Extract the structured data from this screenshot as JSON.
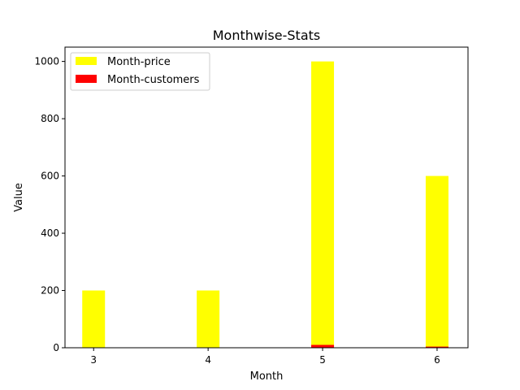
{
  "chart_data": {
    "type": "bar",
    "title": "Monthwise-Stats",
    "xlabel": "Month",
    "ylabel": "Value",
    "categories": [
      "3",
      "4",
      "5",
      "6"
    ],
    "x": [
      3,
      4,
      5,
      6
    ],
    "ylim": [
      0,
      1050
    ],
    "xlim": [
      2.75,
      6.27
    ],
    "yticks": [
      "0",
      "200",
      "400",
      "600",
      "800",
      "1000"
    ],
    "grid": false,
    "legend_position": "upper-left",
    "series": [
      {
        "name": "Month-price",
        "color": "#ffff00",
        "values": [
          200,
          200,
          1000,
          600
        ]
      },
      {
        "name": "Month-customers",
        "color": "#ff0000",
        "values": [
          0,
          0,
          10,
          4
        ]
      }
    ]
  }
}
